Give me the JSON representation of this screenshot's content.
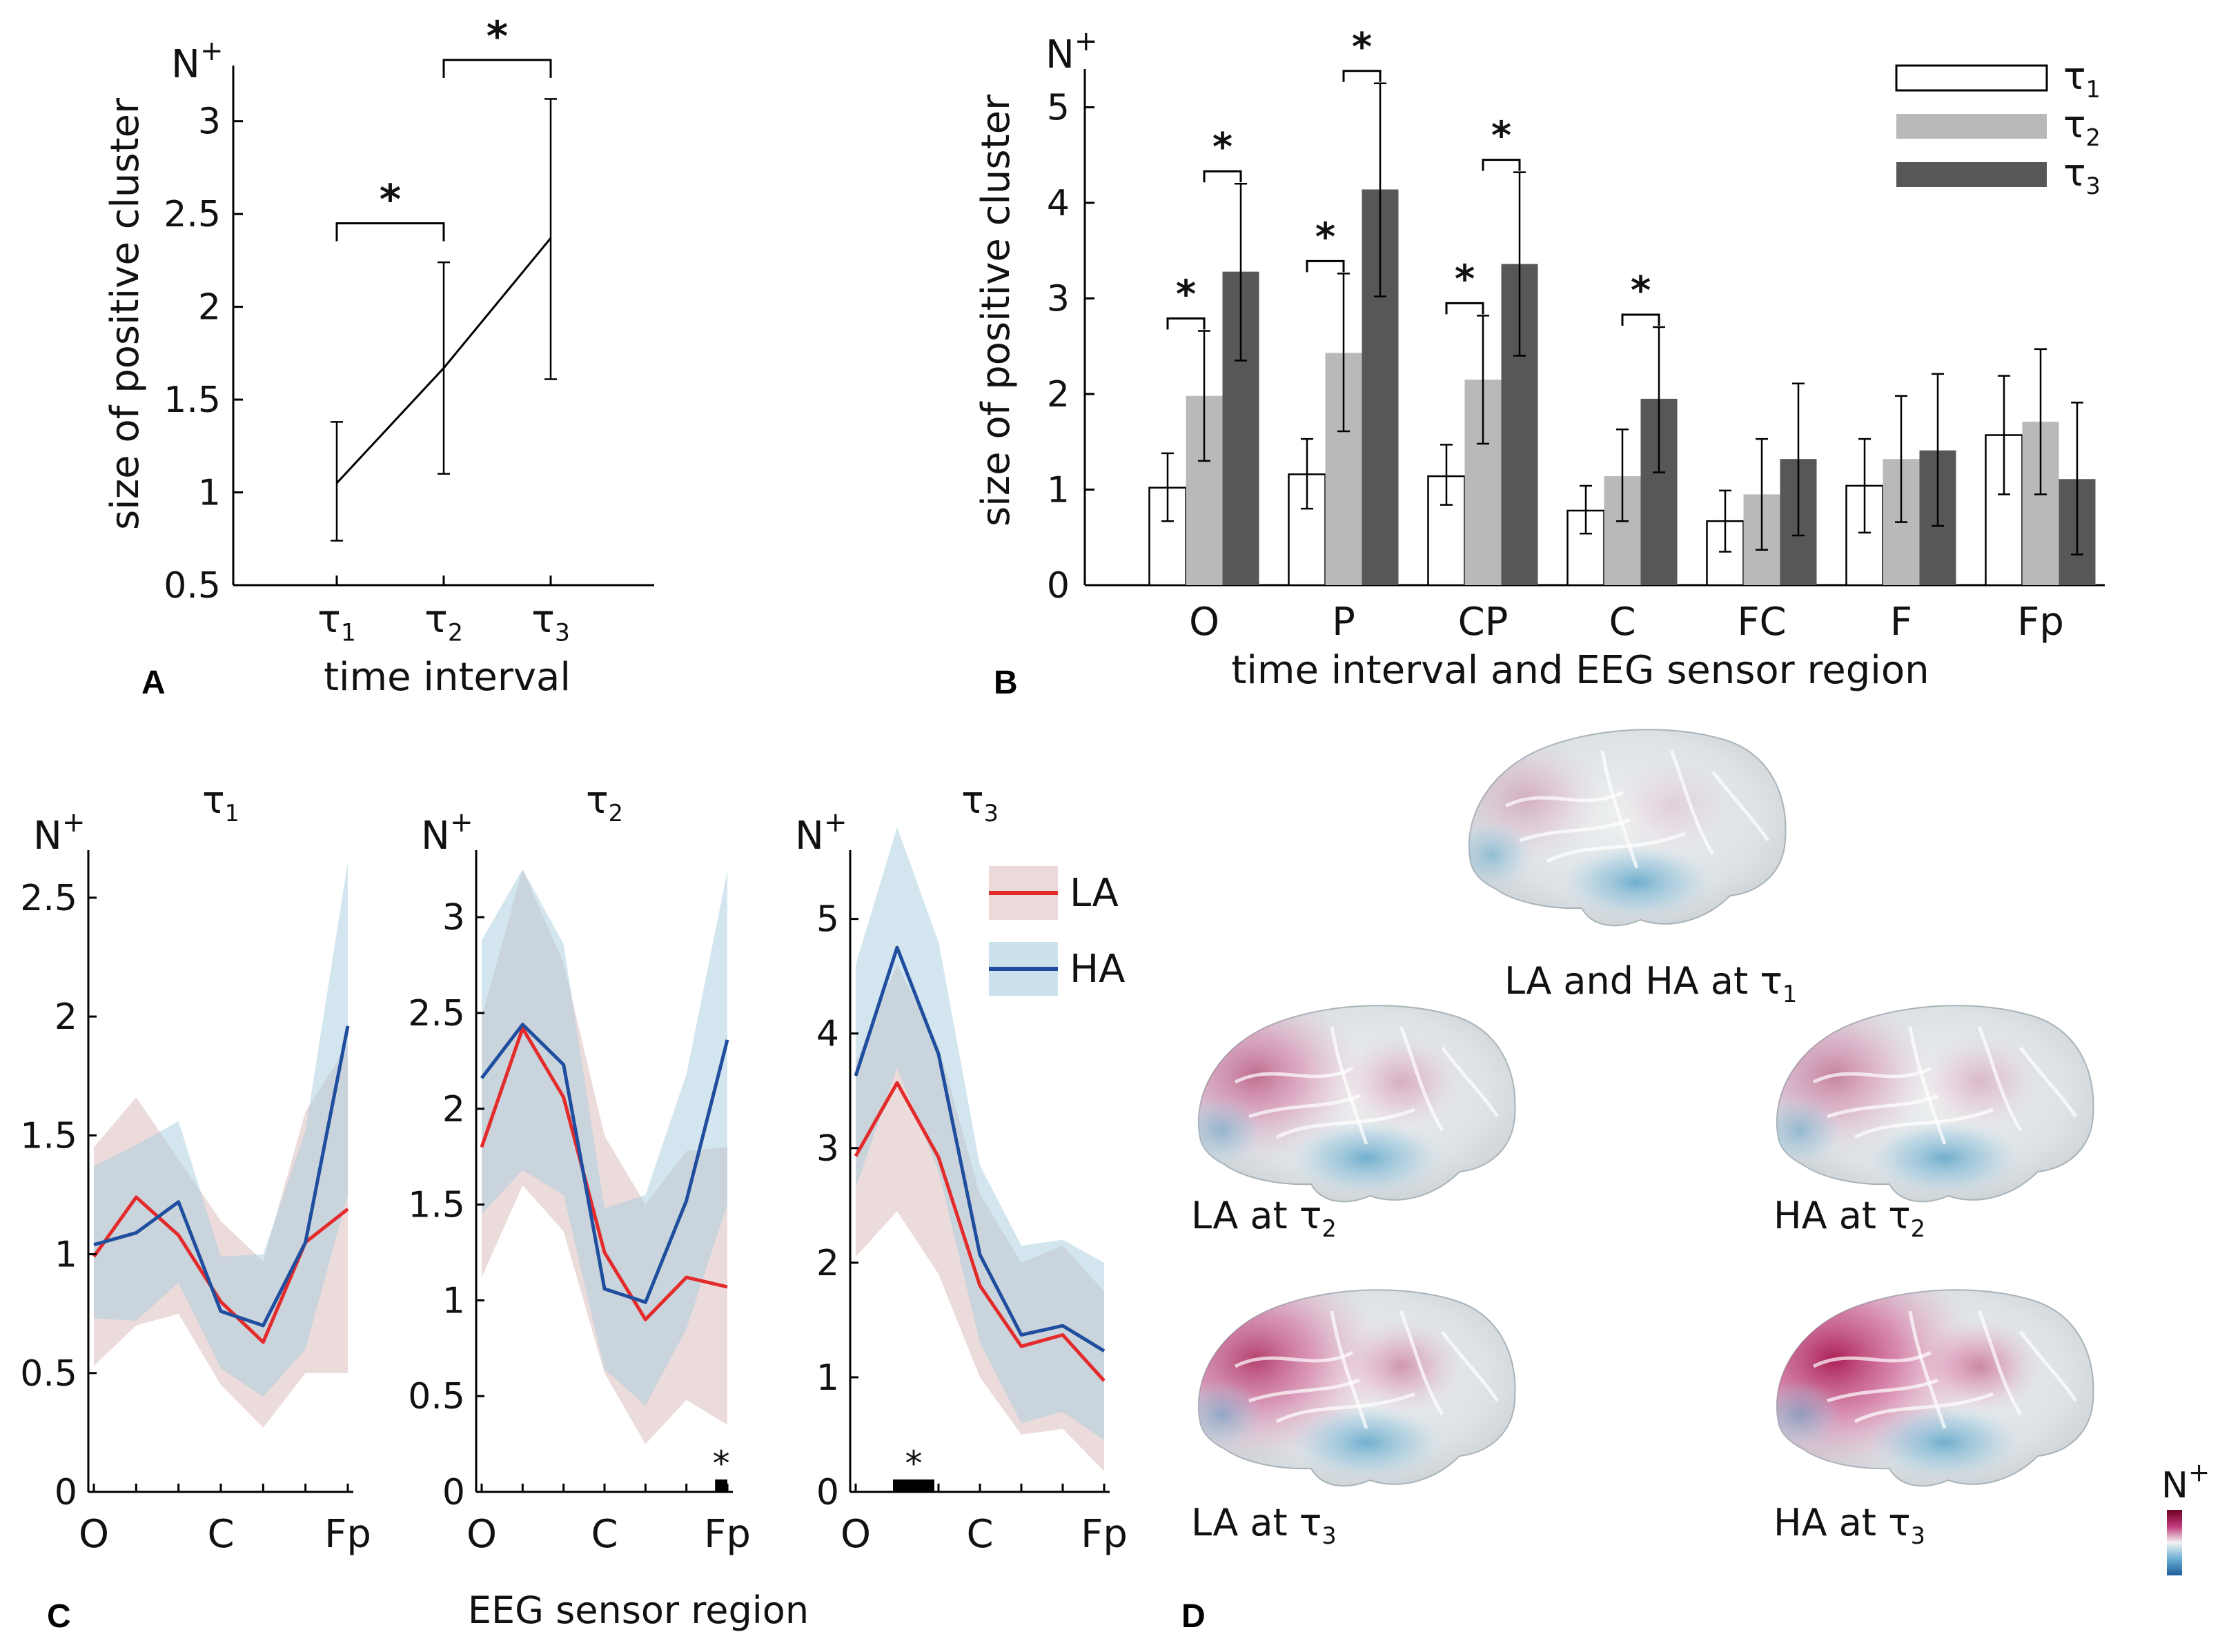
{
  "panels": {
    "A": "A",
    "B": "B",
    "C": "C",
    "D": "D"
  },
  "sig_marker": "*",
  "chart_data": [
    {
      "id": "A",
      "type": "line",
      "title": "",
      "ylabel": "size of positive cluster",
      "ylabel_unit": {
        "base": "N",
        "sup": "+"
      },
      "xlabel": "time interval",
      "categories": [
        {
          "base": "τ",
          "sub": "1"
        },
        {
          "base": "τ",
          "sub": "2"
        },
        {
          "base": "τ",
          "sub": "3"
        }
      ],
      "values": [
        1.05,
        1.67,
        2.37
      ],
      "err_low": [
        0.74,
        1.1,
        1.61
      ],
      "err_high": [
        1.38,
        2.24,
        3.12
      ],
      "ylim": [
        0.5,
        3.3
      ],
      "yticks": [
        0.5,
        1,
        1.5,
        2,
        2.5,
        3
      ],
      "ytick_labels": [
        "0.5",
        "1",
        "1.5",
        "2",
        "2.5",
        "3"
      ],
      "significance": [
        {
          "from": 0,
          "to": 1,
          "y": 2.45
        },
        {
          "from": 1,
          "to": 2,
          "y": 3.33
        }
      ]
    },
    {
      "id": "B",
      "type": "bar",
      "ylabel": "size of positive cluster",
      "ylabel_unit": {
        "base": "N",
        "sup": "+"
      },
      "xlabel": "time interval and EEG sensor region",
      "categories": [
        "O",
        "P",
        "CP",
        "C",
        "FC",
        "F",
        "Fp"
      ],
      "series": [
        {
          "name": {
            "base": "τ",
            "sub": "1"
          },
          "color": "#ffffff",
          "values": [
            1.02,
            1.16,
            1.14,
            0.78,
            0.67,
            1.04,
            1.57
          ],
          "err_low": [
            0.67,
            0.8,
            0.84,
            0.54,
            0.35,
            0.55,
            0.95
          ],
          "err_high": [
            1.38,
            1.53,
            1.47,
            1.04,
            0.99,
            1.53,
            2.19
          ]
        },
        {
          "name": {
            "base": "τ",
            "sub": "2"
          },
          "color": "#b8b9ba",
          "values": [
            1.98,
            2.43,
            2.15,
            1.14,
            0.95,
            1.32,
            1.71
          ],
          "err_low": [
            1.3,
            1.61,
            1.48,
            0.67,
            0.37,
            0.66,
            0.95
          ],
          "err_high": [
            2.66,
            3.26,
            2.82,
            1.63,
            1.53,
            1.98,
            2.47
          ]
        },
        {
          "name": {
            "base": "τ",
            "sub": "3"
          },
          "color": "#555758",
          "values": [
            3.28,
            4.14,
            3.36,
            1.95,
            1.32,
            1.41,
            1.11
          ],
          "err_low": [
            2.35,
            3.02,
            2.4,
            1.18,
            0.52,
            0.62,
            0.32
          ],
          "err_high": [
            4.2,
            5.25,
            4.32,
            2.7,
            2.11,
            2.21,
            1.91
          ]
        }
      ],
      "ylim": [
        0,
        5.4
      ],
      "yticks": [
        0,
        1,
        2,
        3,
        4,
        5
      ],
      "ytick_labels": [
        "0",
        "1",
        "2",
        "3",
        "4",
        "5"
      ],
      "significance": [
        {
          "cat": 0,
          "from": 0,
          "to": 1
        },
        {
          "cat": 0,
          "from": 1,
          "to": 2
        },
        {
          "cat": 1,
          "from": 0,
          "to": 1
        },
        {
          "cat": 1,
          "from": 1,
          "to": 2
        },
        {
          "cat": 2,
          "from": 0,
          "to": 1
        },
        {
          "cat": 2,
          "from": 1,
          "to": 2
        },
        {
          "cat": 3,
          "from": 1,
          "to": 2
        }
      ]
    },
    {
      "id": "C1",
      "type": "line",
      "title": {
        "base": "τ",
        "sub": "1"
      },
      "ylabel_unit": {
        "base": "N",
        "sup": "+"
      },
      "xticks": [
        "O",
        "C",
        "Fp"
      ],
      "ylim": [
        0,
        2.7
      ],
      "yticks": [
        0,
        0.5,
        1,
        1.5,
        2,
        2.5
      ],
      "ytick_labels": [
        "0",
        "0.5",
        "1",
        "1.5",
        "2",
        "2.5"
      ],
      "series": [
        {
          "name": "LA",
          "color": "#e32b2b",
          "values": [
            0.99,
            1.24,
            1.08,
            0.8,
            0.63,
            1.05,
            1.19
          ],
          "band_low": [
            0.53,
            0.7,
            0.75,
            0.45,
            0.27,
            0.5,
            0.5
          ],
          "band_high": [
            1.45,
            1.66,
            1.4,
            1.14,
            0.97,
            1.6,
            1.88
          ]
        },
        {
          "name": "HA",
          "color": "#1f4e9e",
          "values": [
            1.04,
            1.09,
            1.22,
            0.76,
            0.7,
            1.05,
            1.96
          ],
          "band_low": [
            0.73,
            0.72,
            0.88,
            0.52,
            0.4,
            0.6,
            1.25
          ],
          "band_high": [
            1.37,
            1.46,
            1.56,
            0.99,
            1.0,
            1.52,
            2.65
          ]
        }
      ]
    },
    {
      "id": "C2",
      "type": "line",
      "title": {
        "base": "τ",
        "sub": "2"
      },
      "ylabel_unit": {
        "base": "N",
        "sup": "+"
      },
      "xticks": [
        "O",
        "C",
        "Fp"
      ],
      "ylim": [
        0,
        3.35
      ],
      "yticks": [
        0,
        0.5,
        1,
        1.5,
        2,
        2.5,
        3
      ],
      "ytick_labels": [
        "0",
        "0.5",
        "1",
        "1.5",
        "2",
        "2.5",
        "3"
      ],
      "sig_bar": {
        "start": 5.7,
        "end": 6.0
      },
      "series": [
        {
          "name": "LA",
          "color": "#e32b2b",
          "values": [
            1.8,
            2.42,
            2.06,
            1.25,
            0.9,
            1.12,
            1.07
          ],
          "band_low": [
            1.12,
            1.6,
            1.36,
            0.62,
            0.25,
            0.48,
            0.35
          ],
          "band_high": [
            2.48,
            3.25,
            2.76,
            1.86,
            1.5,
            1.78,
            1.8
          ]
        },
        {
          "name": "HA",
          "color": "#1f4e9e",
          "values": [
            2.16,
            2.44,
            2.23,
            1.06,
            0.99,
            1.52,
            2.36
          ],
          "band_low": [
            1.45,
            1.68,
            1.55,
            0.64,
            0.45,
            0.85,
            1.5
          ],
          "band_high": [
            2.88,
            3.25,
            2.86,
            1.48,
            1.55,
            2.18,
            3.24
          ]
        }
      ]
    },
    {
      "id": "C3",
      "type": "line",
      "title": {
        "base": "τ",
        "sub": "3"
      },
      "ylabel_unit": {
        "base": "N",
        "sup": "+"
      },
      "xticks": [
        "O",
        "C",
        "Fp"
      ],
      "ylim": [
        0,
        5.6
      ],
      "yticks": [
        0,
        1,
        2,
        3,
        4,
        5
      ],
      "ytick_labels": [
        "0",
        "1",
        "2",
        "3",
        "4",
        "5"
      ],
      "sig_bar": {
        "start": 0.9,
        "end": 1.9
      },
      "series": [
        {
          "name": "LA",
          "color": "#e32b2b",
          "values": [
            2.93,
            3.57,
            2.92,
            1.8,
            1.27,
            1.37,
            0.97
          ],
          "band_low": [
            2.05,
            2.45,
            1.9,
            1.0,
            0.5,
            0.55,
            0.18
          ],
          "band_high": [
            3.75,
            4.6,
            3.9,
            2.6,
            2.0,
            2.15,
            1.75
          ]
        },
        {
          "name": "HA",
          "color": "#1f4e9e",
          "values": [
            3.63,
            4.75,
            3.82,
            2.07,
            1.37,
            1.45,
            1.23
          ],
          "band_low": [
            2.65,
            3.7,
            2.8,
            1.3,
            0.6,
            0.7,
            0.45
          ],
          "band_high": [
            4.6,
            5.8,
            4.8,
            2.85,
            2.15,
            2.2,
            2.0
          ]
        }
      ],
      "legend": [
        {
          "name": "LA",
          "line": "#e32b2b",
          "patch": "#ecd9d9"
        },
        {
          "name": "HA",
          "line": "#1f4e9e",
          "patch": "#cbe1ec"
        }
      ]
    }
  ],
  "panel_c_xlabel": "EEG sensor region",
  "brains": [
    {
      "id": "top",
      "label": "LA and HA at ",
      "tau": "1",
      "pink": 0.25
    },
    {
      "id": "la2",
      "label": "LA at ",
      "tau": "2",
      "pink": 0.55
    },
    {
      "id": "ha2",
      "label": "HA at ",
      "tau": "2",
      "pink": 0.45
    },
    {
      "id": "la3",
      "label": "LA at ",
      "tau": "3",
      "pink": 0.75
    },
    {
      "id": "ha3",
      "label": "HA at ",
      "tau": "3",
      "pink": 0.9
    }
  ],
  "colorbar": {
    "label": {
      "base": "N",
      "sup": "+"
    }
  }
}
